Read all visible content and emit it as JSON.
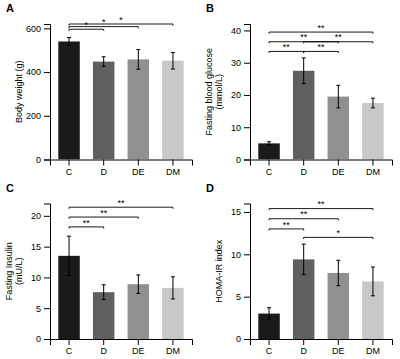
{
  "chart_data": [
    {
      "type": "bar",
      "title": "A",
      "ylabel": "Body weight (g)",
      "categories": [
        "C",
        "D",
        "DE",
        "DM"
      ],
      "values": [
        540,
        448,
        458,
        452
      ],
      "errors": [
        18,
        22,
        45,
        38
      ],
      "colors": [
        "#1a1a1a",
        "#606060",
        "#909090",
        "#c8c8c8"
      ],
      "ylim": [
        0,
        620
      ],
      "yticks": [
        0,
        200,
        400,
        600
      ],
      "grid": false,
      "annotations": [
        {
          "from": "C",
          "to": "D",
          "y": 596,
          "label": "*"
        },
        {
          "from": "C",
          "to": "DE",
          "y": 608,
          "label": "*"
        },
        {
          "from": "C",
          "to": "DM",
          "y": 620,
          "label": "*"
        }
      ]
    },
    {
      "type": "bar",
      "title": "B",
      "ylabel": "Fasting blood glucose\n(mmol/L)",
      "categories": [
        "C",
        "D",
        "DE",
        "DM"
      ],
      "values": [
        5.0,
        27.5,
        19.5,
        17.5
      ],
      "errors": [
        0.5,
        4.0,
        3.5,
        1.5
      ],
      "colors": [
        "#1a1a1a",
        "#606060",
        "#909090",
        "#c8c8c8"
      ],
      "ylim": [
        0,
        42
      ],
      "yticks": [
        0,
        10,
        20,
        30,
        40
      ],
      "grid": false,
      "annotations": [
        {
          "from": "C",
          "to": "D",
          "y": 33.5,
          "label": "**"
        },
        {
          "from": "D",
          "to": "DE",
          "y": 33.5,
          "label": "**"
        },
        {
          "from": "C",
          "to": "DE",
          "y": 36.5,
          "label": "**"
        },
        {
          "from": "D",
          "to": "DM",
          "y": 36.5,
          "label": "**"
        },
        {
          "from": "C",
          "to": "DM",
          "y": 39.5,
          "label": "**"
        }
      ]
    },
    {
      "type": "bar",
      "title": "C",
      "ylabel": "Fasting Insulin\n(mU/L)",
      "categories": [
        "C",
        "D",
        "DE",
        "DM"
      ],
      "values": [
        13.5,
        7.6,
        8.9,
        8.3
      ],
      "errors": [
        3.2,
        1.2,
        1.5,
        1.8
      ],
      "colors": [
        "#1a1a1a",
        "#606060",
        "#909090",
        "#c8c8c8"
      ],
      "ylim": [
        0,
        22
      ],
      "yticks": [
        0,
        5,
        10,
        15,
        20
      ],
      "grid": false,
      "annotations": [
        {
          "from": "C",
          "to": "D",
          "y": 18.2,
          "label": "**"
        },
        {
          "from": "C",
          "to": "DE",
          "y": 19.8,
          "label": "**"
        },
        {
          "from": "C",
          "to": "DM",
          "y": 21.4,
          "label": "**"
        }
      ]
    },
    {
      "type": "bar",
      "title": "D",
      "ylabel": "HOMA-IR index",
      "categories": [
        "C",
        "D",
        "DE",
        "DM"
      ],
      "values": [
        3.0,
        9.4,
        7.8,
        6.8
      ],
      "errors": [
        0.7,
        1.8,
        1.5,
        1.7
      ],
      "colors": [
        "#1a1a1a",
        "#606060",
        "#909090",
        "#c8c8c8"
      ],
      "ylim": [
        0,
        16
      ],
      "yticks": [
        0,
        5,
        10,
        15
      ],
      "grid": false,
      "annotations": [
        {
          "from": "C",
          "to": "D",
          "y": 13.0,
          "label": "**"
        },
        {
          "from": "C",
          "to": "DE",
          "y": 14.2,
          "label": "**"
        },
        {
          "from": "C",
          "to": "DM",
          "y": 15.4,
          "label": "**"
        },
        {
          "from": "D",
          "to": "DM",
          "y": 12.0,
          "label": "*"
        }
      ]
    }
  ]
}
